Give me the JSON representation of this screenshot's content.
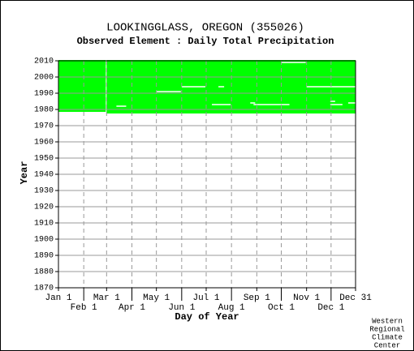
{
  "chart_data": {
    "type": "availability",
    "title": "LOOKINGGLASS, OREGON   (355026)",
    "subtitle": "Observed Element : Daily Total Precipitation",
    "x_label": "Day of Year",
    "y_label": "Year",
    "credit": [
      "Western",
      "Regional",
      "Climate",
      "Center"
    ],
    "color": "#00ff00",
    "gap_color": "#ffffff",
    "xlim": [
      1,
      365
    ],
    "ylim": [
      1870,
      2010
    ],
    "xticks": [
      {
        "value": 1,
        "label": "Jan 1"
      },
      {
        "value": 32,
        "label": "Feb 1"
      },
      {
        "value": 60,
        "label": "Mar 1"
      },
      {
        "value": 91,
        "label": "Apr 1"
      },
      {
        "value": 121,
        "label": "May 1"
      },
      {
        "value": 152,
        "label": "Jun 1"
      },
      {
        "value": 182,
        "label": "Jul 1"
      },
      {
        "value": 213,
        "label": "Aug 1"
      },
      {
        "value": 244,
        "label": "Sep 1"
      },
      {
        "value": 274,
        "label": "Oct 1"
      },
      {
        "value": 305,
        "label": "Nov 1"
      },
      {
        "value": 335,
        "label": "Dec 1"
      },
      {
        "value": 365,
        "label": "Dec 31"
      }
    ],
    "yticks": [
      1870,
      1880,
      1890,
      1900,
      1910,
      1920,
      1930,
      1940,
      1950,
      1960,
      1970,
      1980,
      1990,
      2000,
      2010
    ],
    "grid": true,
    "blocks": [
      {
        "days": [
          1,
          59
        ],
        "years": [
          1978.5,
          2010.5
        ]
      },
      {
        "days": [
          60,
          365
        ],
        "years": [
          1977.5,
          2010.5
        ]
      }
    ],
    "gaps": [
      {
        "year": 2009,
        "days": [
          274,
          304
        ]
      },
      {
        "year": 1994,
        "days": [
          152,
          181
        ]
      },
      {
        "year": 1994,
        "days": [
          197,
          204
        ]
      },
      {
        "year": 1994,
        "days": [
          305,
          365
        ]
      },
      {
        "year": 1991,
        "days": [
          121,
          151
        ]
      },
      {
        "year": 1985,
        "days": [
          334,
          340
        ]
      },
      {
        "year": 1984,
        "days": [
          236,
          242
        ]
      },
      {
        "year": 1984,
        "days": [
          356,
          365
        ]
      },
      {
        "year": 1983,
        "days": [
          189,
          212
        ]
      },
      {
        "year": 1983,
        "days": [
          240,
          284
        ]
      },
      {
        "year": 1983,
        "days": [
          334,
          349
        ]
      },
      {
        "year": 1982,
        "days": [
          72,
          84
        ]
      }
    ]
  }
}
